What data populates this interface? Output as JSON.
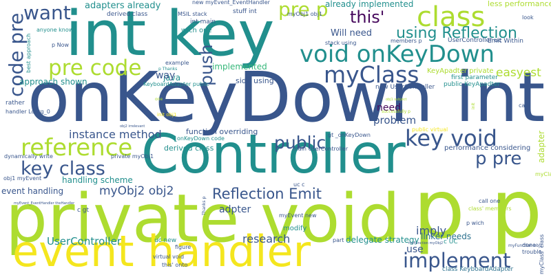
{
  "background": "#ffffff",
  "palette": {
    "green": "#addc30",
    "yellow": "#f4e61e",
    "teal": "#218f8d",
    "blue": "#39568c",
    "slate": "#2c718e",
    "purple": "#46085c",
    "mint": "#35b779",
    "seafoam": "#1fa088"
  },
  "words": [
    "private void",
    "p p",
    "onKeyDown int",
    "int key",
    "Controller",
    "event handler",
    "void onKeyDown",
    "myClass",
    "key void",
    "class",
    "reference",
    "pre code",
    "using Reflection",
    "implement",
    "key class",
    "p pre",
    "public",
    "Reflection Emit",
    "push",
    "pre p",
    "code pre",
    "instance method",
    "myObj2 obj2",
    "this'",
    "want",
    "easyest",
    "UserController",
    "research",
    "imply",
    "need",
    "problem",
    "adapters already",
    "already implemented",
    "approach shown",
    "implemented",
    "handling scheme",
    "event handling",
    "function overriding",
    "derived class",
    "Will need",
    "side using",
    "linker needs",
    "adpter",
    "delegate strategy",
    "java",
    "way",
    "use",
    "adapter",
    "KeyApadter private",
    "first parameter",
    "public KeyApadter",
    "new UserController",
    "UserController uc",
    "Emit Within",
    "less performance",
    "performance considering",
    "derived class",
    "MSIL stack",
    "stuff int",
    "int main",
    "wich one",
    "anyone know",
    "p Now",
    "best approach",
    "rather",
    "handler Ldarg_0",
    "dynamically write",
    "private myObj1",
    "obj1 myEvent",
    "KeyboardAdapter public",
    "gt _onKeyDown",
    "_onKeyDown code",
    "main UserController",
    "modify",
    "myEvent new",
    "c gt",
    "uc new",
    "uc c",
    "figure",
    "virtual void",
    "this' onto",
    "part",
    "c UC",
    "class KeyboardAdapter",
    "p wich",
    "call one",
    "done",
    "trouble",
    "myClass' class",
    "call",
    "look",
    "members p",
    "myObj1 obj1",
    "stack using",
    "new myEvent_EventHandler",
    "example",
    "p Thanks",
    "one",
    "init obj1",
    "successfully p",
    "public virtual",
    "obj2 irrelevant",
    "myClass' class",
    "class' members",
    "Thanks p",
    "myFunction myObj2",
    "myFunction obj2",
    "myEvent_EventHandler theHandler",
    "init",
    "obj1 subject"
  ]
}
